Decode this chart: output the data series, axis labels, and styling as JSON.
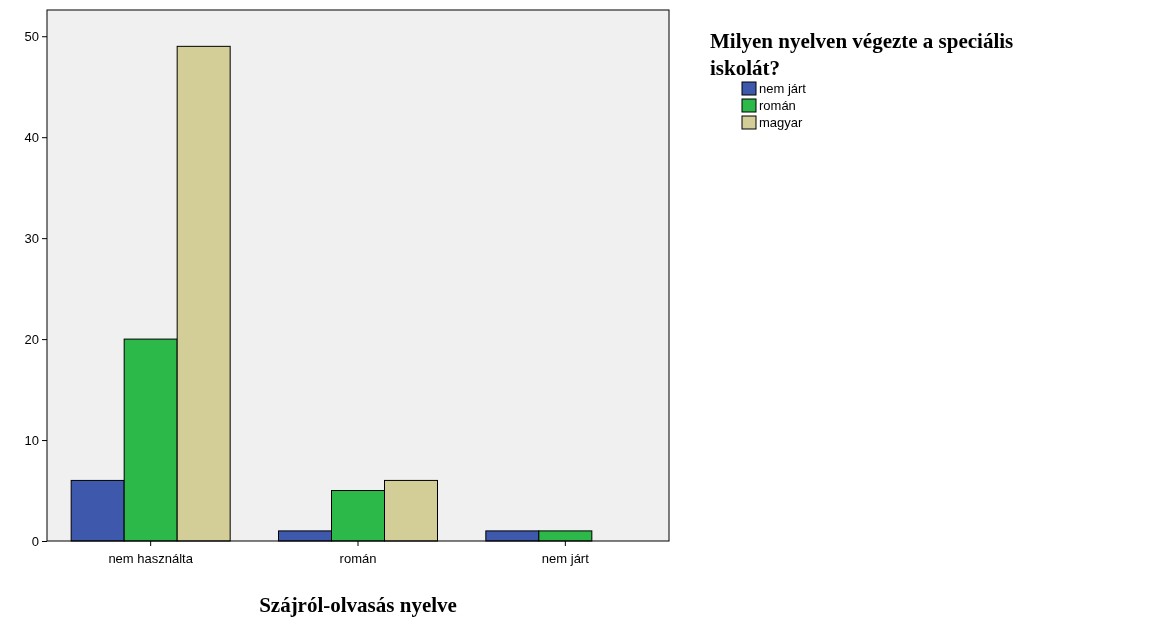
{
  "chart_data": {
    "type": "bar",
    "xlabel": "Szájról-olvasás nyelve",
    "legend_title": "Milyen nyelven végezte a speciális iskolát?",
    "categories": [
      "nem használta",
      "román",
      "nem járt"
    ],
    "series": [
      {
        "name": "nem járt",
        "color": "#3e58ac",
        "values": [
          6,
          1,
          1
        ]
      },
      {
        "name": "román",
        "color": "#2db84a",
        "values": [
          20,
          5,
          1
        ]
      },
      {
        "name": "magyar",
        "color": "#d3ce97",
        "values": [
          49,
          6,
          null
        ]
      }
    ],
    "ylim": [
      0,
      52.6
    ],
    "yticks": [
      0,
      10,
      20,
      30,
      40,
      50
    ],
    "grid": false,
    "legend": "top right"
  }
}
